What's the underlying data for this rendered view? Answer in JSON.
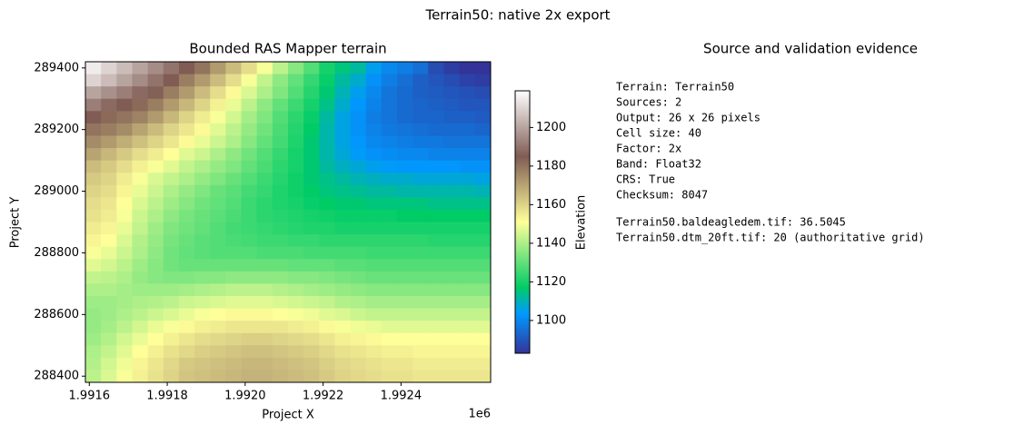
{
  "figure_title": "Terrain50: native 2x export",
  "chart_data": {
    "type": "heatmap",
    "title": "Bounded RAS Mapper terrain",
    "x_label": "Project X",
    "y_label": "Project Y",
    "x_offset_label": "1e6",
    "colorbar_label": "Elevation",
    "xlim": [
      1991590,
      1992630
    ],
    "ylim": [
      288380,
      289420
    ],
    "xticks": [
      {
        "value": 1991600,
        "label": "1.9916"
      },
      {
        "value": 1991800,
        "label": "1.9918"
      },
      {
        "value": 1992000,
        "label": "1.9920"
      },
      {
        "value": 1992200,
        "label": "1.9922"
      },
      {
        "value": 1992400,
        "label": "1.9924"
      }
    ],
    "yticks": [
      288400,
      288600,
      288800,
      289000,
      289200,
      289400
    ],
    "zlim": [
      1083,
      1219
    ],
    "zticks": [
      1100,
      1120,
      1140,
      1160,
      1180,
      1200
    ],
    "colormap": [
      [
        0,
        "#333399"
      ],
      [
        0.15,
        "#0099ff"
      ],
      [
        0.25,
        "#00cc66"
      ],
      [
        0.5,
        "#ffff99"
      ],
      [
        0.75,
        "#805c54"
      ],
      [
        1,
        "#ffffff"
      ]
    ],
    "z": [
      [
        1215,
        1210,
        1205,
        1200,
        1195,
        1190,
        1185,
        1180,
        1172,
        1165,
        1158,
        1150,
        1142,
        1135,
        1128,
        1120,
        1115,
        1112,
        1105,
        1100,
        1098,
        1095,
        1088,
        1085,
        1083,
        1082
      ],
      [
        1210,
        1205,
        1200,
        1195,
        1190,
        1185,
        1178,
        1172,
        1165,
        1158,
        1150,
        1143,
        1136,
        1130,
        1124,
        1118,
        1112,
        1108,
        1102,
        1098,
        1095,
        1092,
        1090,
        1088,
        1086,
        1085
      ],
      [
        1200,
        1196,
        1192,
        1188,
        1184,
        1178,
        1172,
        1165,
        1158,
        1152,
        1146,
        1140,
        1134,
        1128,
        1122,
        1116,
        1110,
        1105,
        1100,
        1096,
        1094,
        1092,
        1091,
        1090,
        1089,
        1088
      ],
      [
        1192,
        1188,
        1185,
        1182,
        1178,
        1172,
        1166,
        1160,
        1154,
        1148,
        1142,
        1136,
        1130,
        1125,
        1120,
        1114,
        1108,
        1103,
        1099,
        1096,
        1094,
        1093,
        1092,
        1091,
        1090,
        1090
      ],
      [
        1185,
        1182,
        1180,
        1177,
        1172,
        1166,
        1160,
        1155,
        1150,
        1145,
        1139,
        1134,
        1128,
        1123,
        1118,
        1112,
        1106,
        1102,
        1098,
        1096,
        1094,
        1093,
        1093,
        1092,
        1092,
        1091
      ],
      [
        1180,
        1178,
        1175,
        1170,
        1165,
        1160,
        1156,
        1152,
        1147,
        1142,
        1137,
        1132,
        1127,
        1122,
        1117,
        1111,
        1106,
        1102,
        1099,
        1097,
        1096,
        1095,
        1094,
        1094,
        1094,
        1093
      ],
      [
        1175,
        1172,
        1168,
        1164,
        1160,
        1156,
        1152,
        1148,
        1144,
        1140,
        1135,
        1130,
        1126,
        1121,
        1116,
        1111,
        1106,
        1103,
        1100,
        1099,
        1098,
        1097,
        1097,
        1096,
        1096,
        1096
      ],
      [
        1170,
        1166,
        1162,
        1158,
        1155,
        1151,
        1147,
        1144,
        1140,
        1136,
        1132,
        1128,
        1124,
        1120,
        1116,
        1111,
        1107,
        1104,
        1102,
        1101,
        1100,
        1100,
        1099,
        1099,
        1099,
        1099
      ],
      [
        1165,
        1162,
        1158,
        1154,
        1150,
        1147,
        1143,
        1140,
        1137,
        1134,
        1130,
        1127,
        1123,
        1120,
        1116,
        1112,
        1109,
        1107,
        1105,
        1104,
        1103,
        1103,
        1103,
        1103,
        1102,
        1102
      ],
      [
        1162,
        1160,
        1155,
        1150,
        1146,
        1143,
        1140,
        1137,
        1134,
        1131,
        1128,
        1125,
        1122,
        1119,
        1116,
        1114,
        1112,
        1110,
        1109,
        1108,
        1108,
        1107,
        1107,
        1107,
        1107,
        1106
      ],
      [
        1160,
        1158,
        1153,
        1148,
        1144,
        1140,
        1137,
        1134,
        1131,
        1129,
        1126,
        1124,
        1121,
        1119,
        1117,
        1115,
        1114,
        1113,
        1112,
        1112,
        1111,
        1111,
        1111,
        1111,
        1111,
        1110
      ],
      [
        1158,
        1156,
        1151,
        1146,
        1142,
        1138,
        1135,
        1132,
        1130,
        1128,
        1125,
        1123,
        1121,
        1120,
        1118,
        1117,
        1116,
        1116,
        1115,
        1115,
        1115,
        1115,
        1114,
        1114,
        1114,
        1114
      ],
      [
        1157,
        1155,
        1150,
        1144,
        1140,
        1136,
        1133,
        1131,
        1129,
        1127,
        1125,
        1123,
        1122,
        1121,
        1120,
        1119,
        1118,
        1118,
        1118,
        1118,
        1117,
        1117,
        1117,
        1117,
        1117,
        1117
      ],
      [
        1155,
        1153,
        1148,
        1143,
        1138,
        1134,
        1132,
        1130,
        1128,
        1126,
        1125,
        1124,
        1123,
        1122,
        1121,
        1121,
        1120,
        1120,
        1120,
        1120,
        1120,
        1120,
        1120,
        1120,
        1120,
        1120
      ],
      [
        1153,
        1151,
        1146,
        1141,
        1137,
        1133,
        1131,
        1129,
        1128,
        1127,
        1126,
        1125,
        1125,
        1124,
        1124,
        1123,
        1123,
        1123,
        1123,
        1123,
        1123,
        1123,
        1122,
        1122,
        1122,
        1122
      ],
      [
        1150,
        1148,
        1144,
        1140,
        1136,
        1132,
        1130,
        1129,
        1128,
        1128,
        1128,
        1127,
        1127,
        1127,
        1126,
        1126,
        1126,
        1126,
        1125,
        1125,
        1125,
        1125,
        1125,
        1125,
        1125,
        1125
      ],
      [
        1147,
        1145,
        1142,
        1138,
        1135,
        1132,
        1131,
        1131,
        1131,
        1131,
        1131,
        1131,
        1131,
        1130,
        1130,
        1130,
        1129,
        1129,
        1128,
        1128,
        1128,
        1128,
        1128,
        1128,
        1128,
        1128
      ],
      [
        1143,
        1142,
        1140,
        1137,
        1135,
        1134,
        1134,
        1135,
        1135,
        1136,
        1136,
        1136,
        1136,
        1135,
        1135,
        1134,
        1133,
        1132,
        1131,
        1131,
        1131,
        1131,
        1131,
        1131,
        1131,
        1131
      ],
      [
        1140,
        1140,
        1139,
        1138,
        1138,
        1138,
        1139,
        1140,
        1141,
        1142,
        1142,
        1142,
        1141,
        1140,
        1139,
        1138,
        1137,
        1136,
        1135,
        1135,
        1135,
        1135,
        1135,
        1135,
        1135,
        1135
      ],
      [
        1138,
        1138,
        1139,
        1140,
        1141,
        1142,
        1144,
        1145,
        1146,
        1147,
        1147,
        1147,
        1146,
        1145,
        1144,
        1143,
        1141,
        1140,
        1139,
        1139,
        1139,
        1139,
        1139,
        1139,
        1139,
        1139
      ],
      [
        1137,
        1138,
        1140,
        1142,
        1144,
        1146,
        1148,
        1150,
        1151,
        1152,
        1152,
        1152,
        1151,
        1150,
        1149,
        1147,
        1146,
        1144,
        1143,
        1143,
        1143,
        1143,
        1143,
        1143,
        1143,
        1143
      ],
      [
        1137,
        1139,
        1142,
        1145,
        1148,
        1150,
        1152,
        1154,
        1155,
        1156,
        1156,
        1156,
        1156,
        1155,
        1154,
        1152,
        1150,
        1149,
        1148,
        1147,
        1147,
        1147,
        1147,
        1147,
        1147,
        1147
      ],
      [
        1138,
        1141,
        1145,
        1148,
        1151,
        1154,
        1156,
        1158,
        1159,
        1160,
        1161,
        1161,
        1160,
        1159,
        1158,
        1156,
        1154,
        1153,
        1152,
        1151,
        1151,
        1151,
        1151,
        1151,
        1151,
        1151
      ],
      [
        1140,
        1143,
        1147,
        1151,
        1154,
        1157,
        1159,
        1161,
        1162,
        1163,
        1164,
        1164,
        1163,
        1162,
        1161,
        1159,
        1157,
        1156,
        1155,
        1154,
        1154,
        1153,
        1153,
        1153,
        1153,
        1153
      ],
      [
        1141,
        1145,
        1149,
        1153,
        1156,
        1159,
        1162,
        1163,
        1164,
        1165,
        1166,
        1166,
        1165,
        1164,
        1163,
        1161,
        1159,
        1158,
        1157,
        1156,
        1156,
        1155,
        1155,
        1155,
        1155,
        1155
      ],
      [
        1142,
        1146,
        1150,
        1154,
        1157,
        1160,
        1163,
        1164,
        1165,
        1166,
        1167,
        1167,
        1166,
        1165,
        1164,
        1162,
        1160,
        1159,
        1158,
        1157,
        1157,
        1156,
        1156,
        1156,
        1156,
        1156
      ]
    ]
  },
  "evidence": {
    "title": "Source and validation evidence",
    "summary": [
      "Terrain: Terrain50",
      "Sources: 2",
      "Output: 26 x 26 pixels",
      "Cell size: 40",
      "Factor: 2x",
      "Band: Float32",
      "CRS: True",
      "Checksum: 8047"
    ],
    "sources": [
      "Terrain50.baldeagledem.tif: 36.5045",
      "Terrain50.dtm_20ft.tif: 20 (authoritative grid)"
    ]
  }
}
